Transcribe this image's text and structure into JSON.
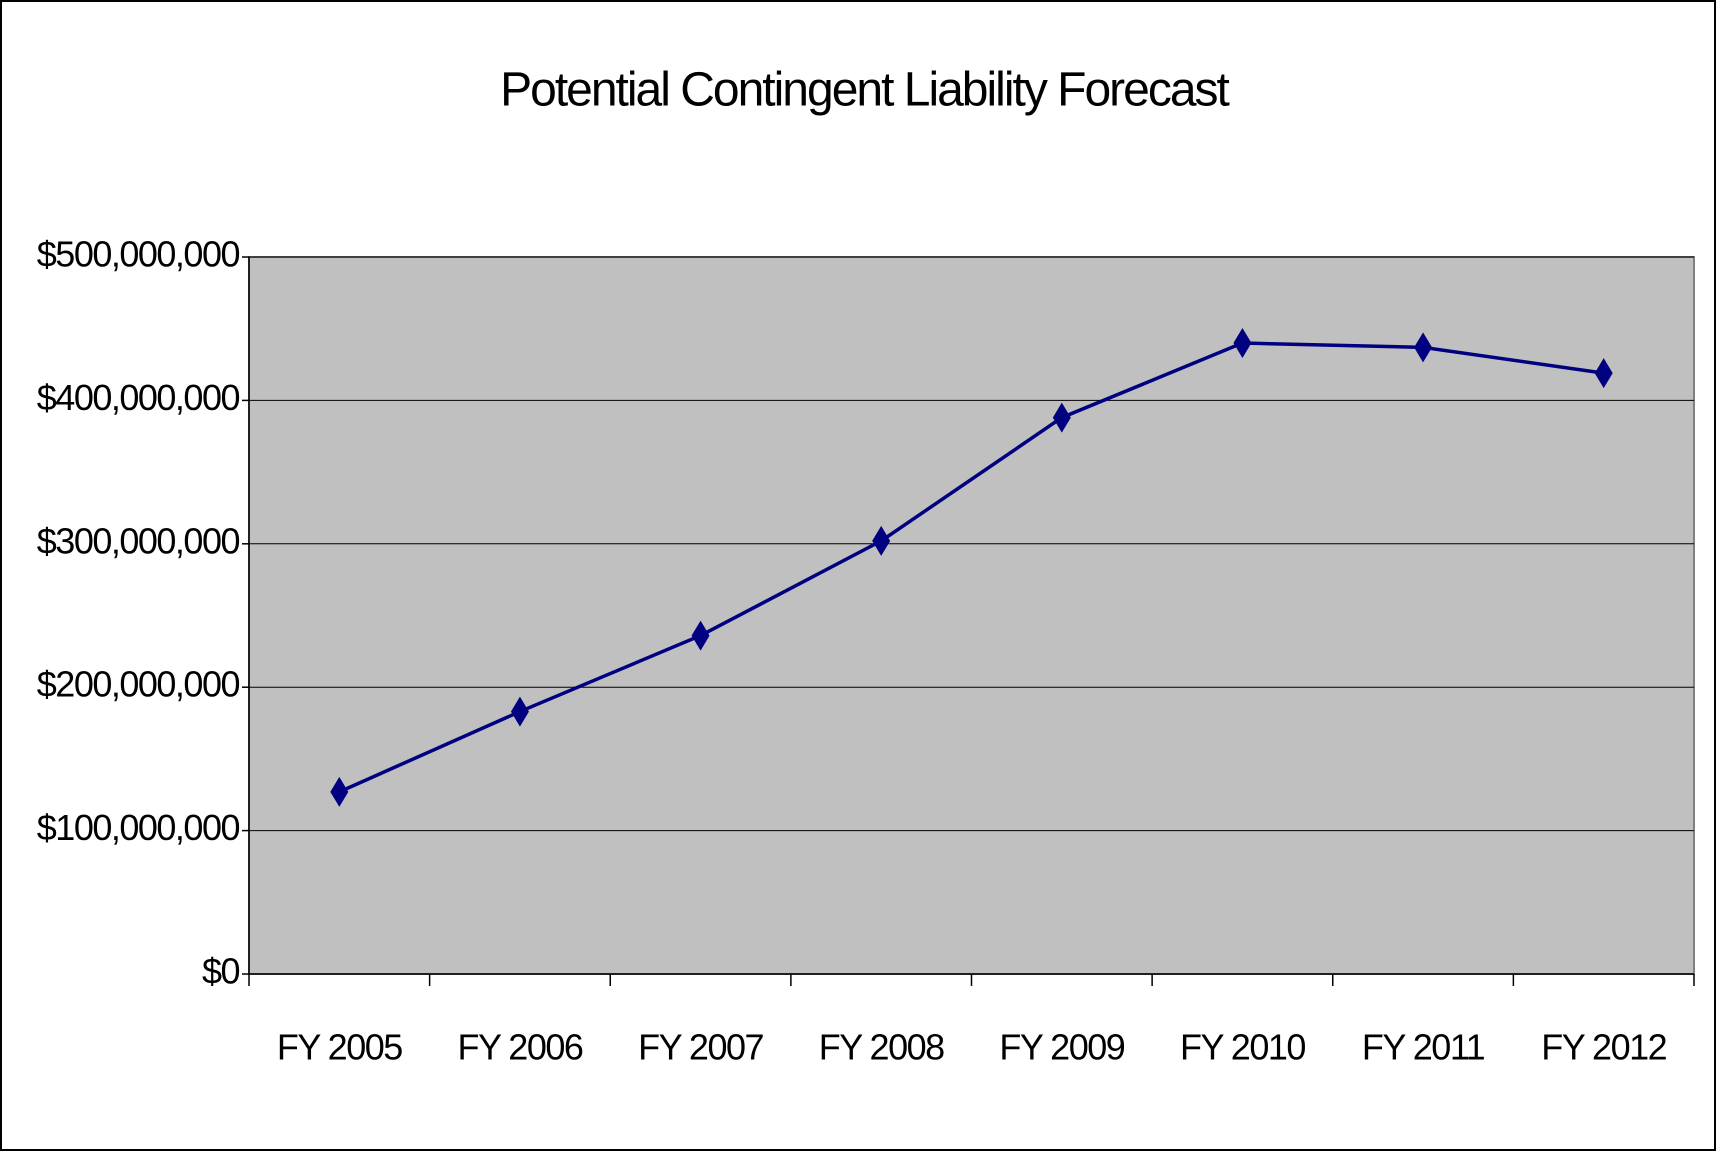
{
  "chart_data": {
    "type": "line",
    "title": "Potential Contingent Liability Forecast",
    "categories": [
      "FY 2005",
      "FY 2006",
      "FY 2007",
      "FY 2008",
      "FY 2009",
      "FY 2010",
      "FY 2011",
      "FY 2012"
    ],
    "series": [
      {
        "name": "Potential Contingent Liability",
        "color": "#000080",
        "values": [
          127000000,
          183000000,
          236000000,
          302000000,
          388000000,
          440000000,
          437000000,
          419000000
        ]
      }
    ],
    "ylim": [
      0,
      500000000
    ],
    "yticks": [
      {
        "value": 0,
        "label": "$0"
      },
      {
        "value": 100000000,
        "label": "$100,000,000"
      },
      {
        "value": 200000000,
        "label": "$200,000,000"
      },
      {
        "value": 300000000,
        "label": "$300,000,000"
      },
      {
        "value": 400000000,
        "label": "$400,000,000"
      },
      {
        "value": 500000000,
        "label": "$500,000,000"
      }
    ],
    "grid": true,
    "plot_background": "#c0c0c0"
  }
}
